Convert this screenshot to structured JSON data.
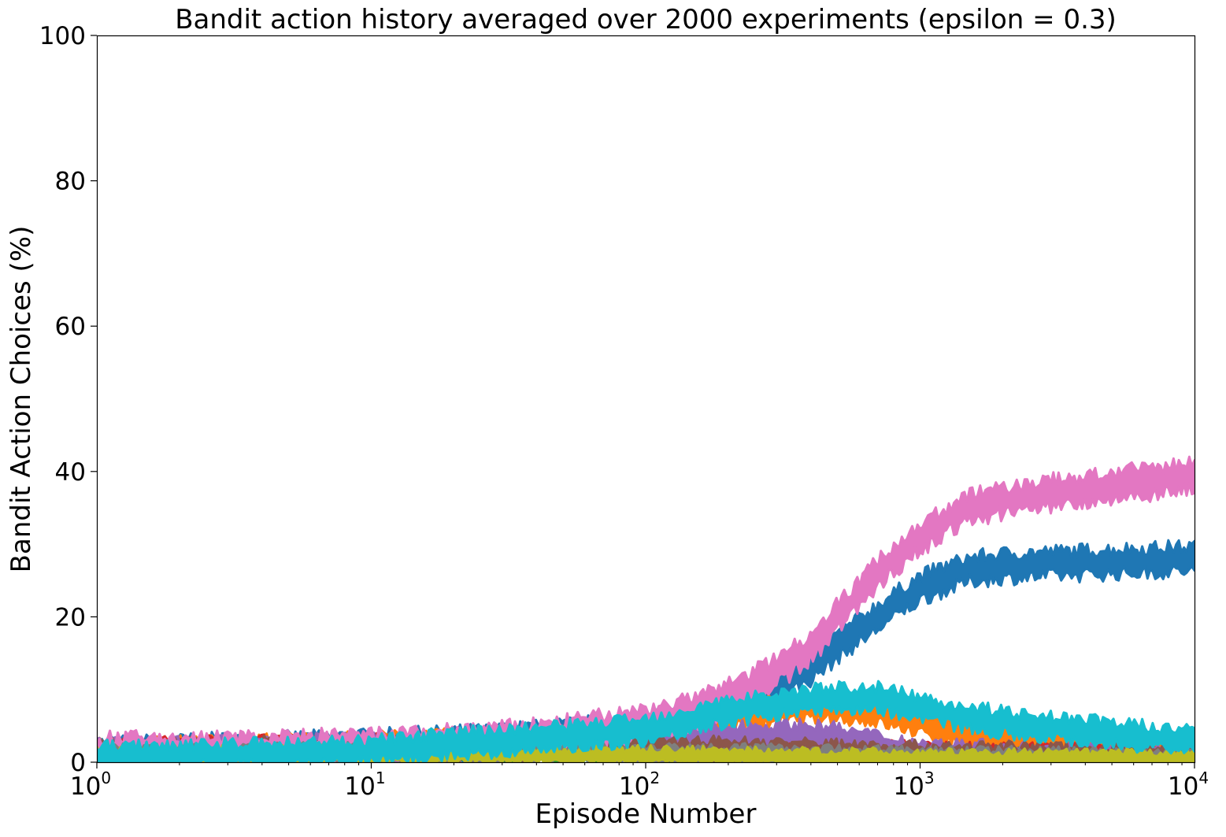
{
  "chart_data": {
    "type": "line",
    "title": "Bandit action history averaged over 2000 experiments (epsilon = 0.3)",
    "xlabel": "Episode Number",
    "ylabel": "Bandit Action Choices (%)",
    "xscale": "log",
    "xlim": [
      1,
      10000
    ],
    "ylim": [
      0,
      100
    ],
    "grid": false,
    "legend": "none",
    "x_ticks": [
      {
        "base": "10",
        "exp": "0",
        "value": 1
      },
      {
        "base": "10",
        "exp": "1",
        "value": 10
      },
      {
        "base": "10",
        "exp": "2",
        "value": 100
      },
      {
        "base": "10",
        "exp": "3",
        "value": 1000
      },
      {
        "base": "10",
        "exp": "4",
        "value": 10000
      }
    ],
    "y_ticks": [
      "0",
      "20",
      "40",
      "60",
      "80",
      "100"
    ],
    "series": [
      {
        "color": "#1f77b4",
        "band": 3.4,
        "x": [
          1,
          3,
          10,
          30,
          50,
          100,
          150,
          200,
          300,
          400,
          500,
          700,
          1000,
          1500,
          2000,
          3000,
          5000,
          10000
        ],
        "y": [
          1.0,
          1.5,
          2.0,
          2.8,
          3.5,
          4.5,
          5.8,
          7.5,
          10.5,
          13.0,
          16.0,
          20.0,
          24.0,
          26.5,
          27.0,
          27.3,
          27.6,
          28.0
        ]
      },
      {
        "color": "#ff7f0e",
        "band": 3.0,
        "x": [
          1,
          3,
          10,
          30,
          50,
          100,
          150,
          200,
          300,
          400,
          500,
          700,
          1000,
          1500,
          2000,
          3000,
          5000,
          10000
        ],
        "y": [
          1.0,
          1.5,
          2.0,
          2.5,
          3.0,
          4.0,
          5.5,
          6.5,
          7.0,
          7.5,
          7.5,
          7.0,
          5.5,
          4.0,
          3.2,
          2.6,
          2.2,
          1.8
        ]
      },
      {
        "color": "#2ca02c",
        "band": 2.0,
        "x": [
          1,
          10,
          30,
          100,
          300,
          1000,
          10000
        ],
        "y": [
          1.0,
          1.2,
          1.1,
          1.0,
          0.8,
          0.6,
          0.5
        ]
      },
      {
        "color": "#d62728",
        "band": 2.5,
        "x": [
          1,
          3,
          10,
          30,
          50,
          100,
          200,
          300,
          500,
          700,
          1000,
          2000,
          10000
        ],
        "y": [
          1.5,
          1.8,
          2.0,
          2.5,
          2.5,
          2.3,
          2.0,
          1.8,
          1.5,
          1.2,
          1.0,
          0.8,
          0.6
        ]
      },
      {
        "color": "#9467bd",
        "band": 3.0,
        "x": [
          1,
          3,
          10,
          30,
          50,
          100,
          200,
          300,
          400,
          500,
          700,
          1000,
          2000,
          10000
        ],
        "y": [
          1.0,
          1.5,
          1.8,
          2.2,
          2.5,
          3.0,
          3.5,
          3.7,
          3.7,
          3.2,
          2.2,
          1.2,
          0.7,
          0.5
        ]
      },
      {
        "color": "#8c564b",
        "band": 2.6,
        "x": [
          1,
          3,
          10,
          30,
          100,
          300,
          1000,
          10000
        ],
        "y": [
          1.2,
          1.5,
          1.8,
          2.0,
          1.8,
          1.5,
          1.0,
          0.6
        ]
      },
      {
        "color": "#e377c2",
        "band": 3.6,
        "x": [
          1,
          3,
          10,
          30,
          50,
          100,
          150,
          200,
          300,
          400,
          500,
          700,
          1000,
          1500,
          2000,
          3000,
          5000,
          10000
        ],
        "y": [
          1.5,
          1.6,
          2.0,
          3.0,
          3.8,
          5.5,
          7.0,
          9.0,
          12.5,
          16.0,
          20.0,
          26.0,
          31.0,
          35.0,
          36.0,
          37.0,
          38.0,
          39.5
        ]
      },
      {
        "color": "#7f7f7f",
        "band": 2.0,
        "x": [
          1,
          10,
          30,
          100,
          300,
          1000,
          10000
        ],
        "y": [
          1.0,
          1.2,
          1.3,
          1.2,
          1.0,
          0.7,
          0.5
        ]
      },
      {
        "color": "#bcbd22",
        "band": 1.8,
        "x": [
          1,
          10,
          30,
          100,
          300,
          1000,
          10000
        ],
        "y": [
          0.8,
          1.0,
          1.0,
          0.9,
          0.7,
          0.5,
          0.4
        ]
      },
      {
        "color": "#17becf",
        "band": 3.0,
        "x": [
          1,
          3,
          10,
          20,
          30,
          50,
          100,
          150,
          200,
          300,
          400,
          500,
          700,
          1000,
          1500,
          2000,
          3000,
          5000,
          10000
        ],
        "y": [
          0.8,
          1.0,
          1.5,
          2.5,
          3.0,
          3.5,
          4.5,
          6.0,
          7.0,
          8.0,
          8.5,
          8.8,
          8.8,
          7.5,
          6.2,
          5.5,
          4.8,
          4.0,
          2.8
        ]
      }
    ]
  }
}
